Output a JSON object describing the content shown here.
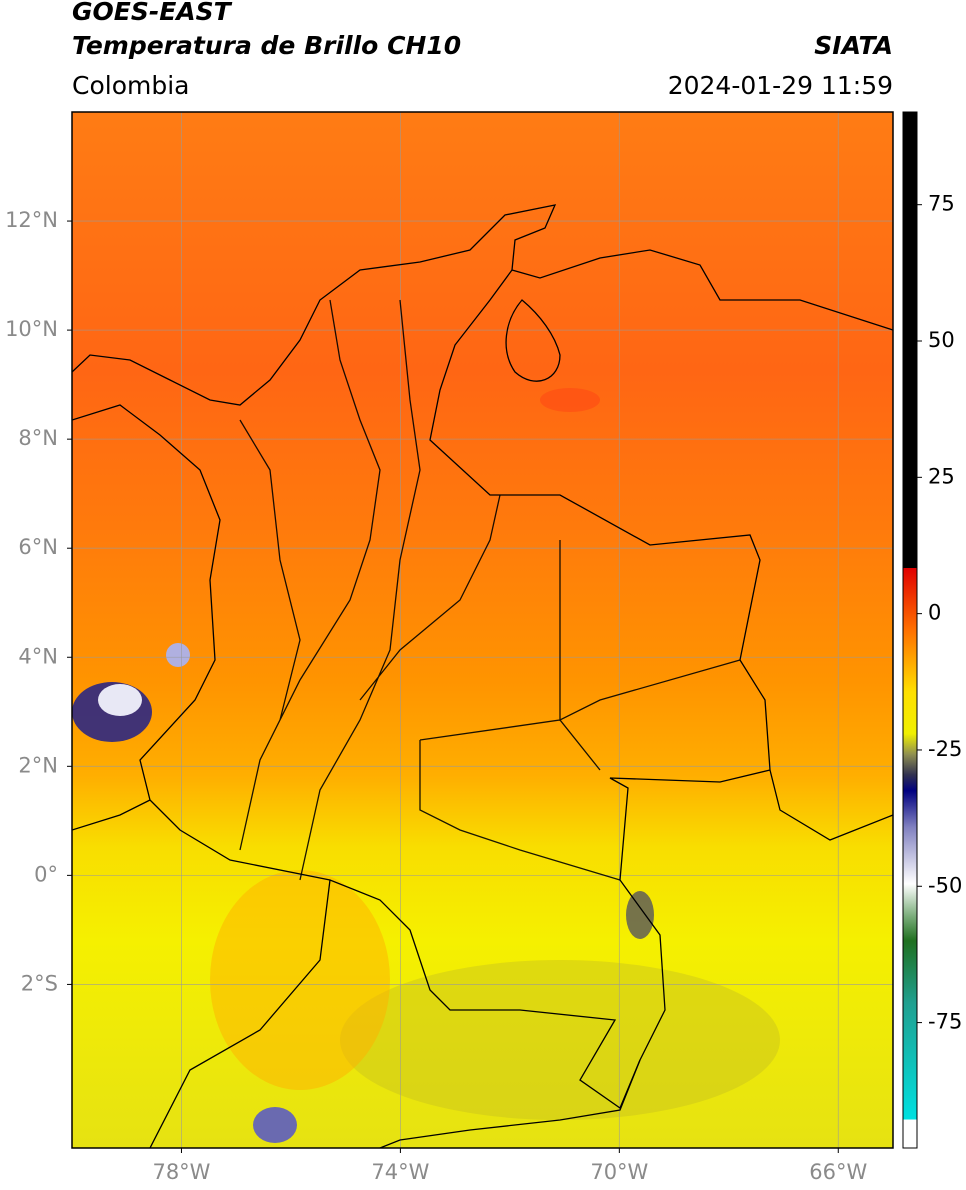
{
  "header": {
    "satellite": "GOES-EAST",
    "product": "Temperatura de Brillo CH10",
    "source": "SIATA",
    "region": "Colombia",
    "datetime": "2024-01-29 11:59"
  },
  "map": {
    "xlim": [
      -80,
      -65
    ],
    "ylim": [
      -5,
      14
    ],
    "xticks": [
      {
        "value": -78,
        "label": "78°W"
      },
      {
        "value": -74,
        "label": "74°W"
      },
      {
        "value": -70,
        "label": "70°W"
      },
      {
        "value": -66,
        "label": "66°W"
      }
    ],
    "yticks": [
      {
        "value": 12,
        "label": "12°N"
      },
      {
        "value": 10,
        "label": "10°N"
      },
      {
        "value": 8,
        "label": "8°N"
      },
      {
        "value": 6,
        "label": "6°N"
      },
      {
        "value": 4,
        "label": "4°N"
      },
      {
        "value": 2,
        "label": "2°N"
      },
      {
        "value": 0,
        "label": "0°"
      },
      {
        "value": -2,
        "label": "2°S"
      }
    ],
    "grid": true
  },
  "colorbar": {
    "lim": [
      -98,
      92
    ],
    "ticks": [
      75,
      50,
      25,
      0,
      -25,
      -50,
      -75
    ]
  }
}
